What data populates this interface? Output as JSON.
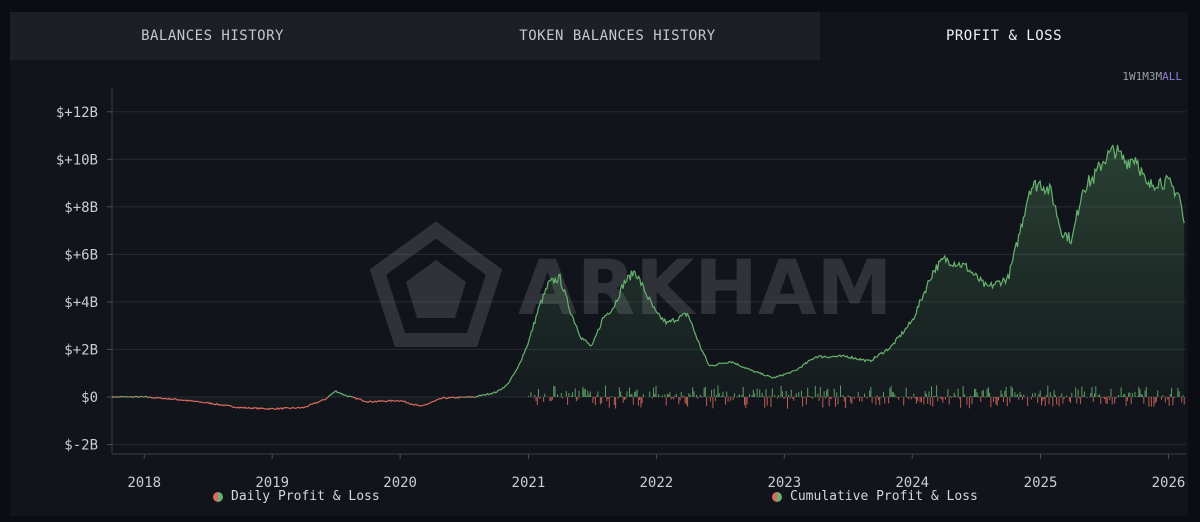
{
  "tabs": [
    {
      "label": "BALANCES HISTORY"
    },
    {
      "label": "TOKEN BALANCES HISTORY"
    },
    {
      "label": "PROFIT & LOSS"
    }
  ],
  "ranges": [
    {
      "label": "1W"
    },
    {
      "label": "1M"
    },
    {
      "label": "3M"
    },
    {
      "label": "ALL"
    }
  ],
  "active_range": "ALL",
  "watermark": "ARKHAM",
  "colors": {
    "positive": "#67b36e",
    "negative": "#d96a5e",
    "accent": "#8e7ad8"
  },
  "chart_data": {
    "type": "area",
    "title": "",
    "xlabel": "",
    "ylabel": "",
    "x_ticks": [
      "2018",
      "2019",
      "2020",
      "2021",
      "2022",
      "2023",
      "2024",
      "2025",
      "2026"
    ],
    "y_ticks": [
      "$-2B",
      "$0",
      "$+2B",
      "$+4B",
      "$+6B",
      "$+8B",
      "$+10B",
      "$+12B"
    ],
    "y_tick_values": [
      -2,
      0,
      2,
      4,
      6,
      8,
      10,
      12
    ],
    "xlim": [
      "2017-10-01",
      "2026-02-20"
    ],
    "ylim": [
      -2.4,
      13.0
    ],
    "unit": "$B",
    "grid": true,
    "legend_position": "bottom",
    "series": [
      {
        "name": "Daily Profit & Loss",
        "kind": "bars",
        "approx_amplitude": 0.5,
        "start": "2021-01-01",
        "end": "2026-02-15"
      },
      {
        "name": "Cumulative Profit & Loss",
        "kind": "area",
        "points": [
          [
            "2017-10-01",
            0.0
          ],
          [
            "2018-01-01",
            0.0
          ],
          [
            "2018-04-01",
            -0.1
          ],
          [
            "2018-07-01",
            -0.25
          ],
          [
            "2018-10-01",
            -0.45
          ],
          [
            "2019-01-01",
            -0.5
          ],
          [
            "2019-04-01",
            -0.45
          ],
          [
            "2019-06-01",
            -0.1
          ],
          [
            "2019-07-01",
            0.25
          ],
          [
            "2019-08-01",
            0.05
          ],
          [
            "2019-10-01",
            -0.2
          ],
          [
            "2020-01-01",
            -0.15
          ],
          [
            "2020-03-01",
            -0.4
          ],
          [
            "2020-05-01",
            -0.05
          ],
          [
            "2020-08-01",
            0.0
          ],
          [
            "2020-10-01",
            0.2
          ],
          [
            "2020-11-01",
            0.5
          ],
          [
            "2020-12-01",
            1.2
          ],
          [
            "2021-01-01",
            2.3
          ],
          [
            "2021-02-01",
            3.8
          ],
          [
            "2021-03-01",
            4.8
          ],
          [
            "2021-04-01",
            5.0
          ],
          [
            "2021-05-01",
            3.6
          ],
          [
            "2021-06-01",
            2.5
          ],
          [
            "2021-07-01",
            2.1
          ],
          [
            "2021-08-01",
            3.3
          ],
          [
            "2021-09-01",
            3.8
          ],
          [
            "2021-10-01",
            4.8
          ],
          [
            "2021-11-01",
            5.3
          ],
          [
            "2021-12-01",
            4.4
          ],
          [
            "2022-01-01",
            3.5
          ],
          [
            "2022-02-01",
            3.1
          ],
          [
            "2022-03-01",
            3.3
          ],
          [
            "2022-04-01",
            3.5
          ],
          [
            "2022-05-01",
            2.3
          ],
          [
            "2022-06-01",
            1.3
          ],
          [
            "2022-08-01",
            1.5
          ],
          [
            "2022-10-01",
            1.1
          ],
          [
            "2022-12-01",
            0.8
          ],
          [
            "2023-02-01",
            1.1
          ],
          [
            "2023-04-01",
            1.7
          ],
          [
            "2023-07-01",
            1.7
          ],
          [
            "2023-09-01",
            1.5
          ],
          [
            "2023-11-01",
            2.1
          ],
          [
            "2024-01-01",
            3.2
          ],
          [
            "2024-03-01",
            5.3
          ],
          [
            "2024-04-01",
            5.8
          ],
          [
            "2024-06-01",
            5.5
          ],
          [
            "2024-08-01",
            4.6
          ],
          [
            "2024-10-01",
            5.0
          ],
          [
            "2024-11-01",
            6.8
          ],
          [
            "2024-12-01",
            8.8
          ],
          [
            "2025-01-01",
            9.0
          ],
          [
            "2025-02-01",
            8.6
          ],
          [
            "2025-03-01",
            7.0
          ],
          [
            "2025-04-01",
            6.6
          ],
          [
            "2025-05-01",
            8.8
          ],
          [
            "2025-06-01",
            9.2
          ],
          [
            "2025-07-01",
            10.0
          ],
          [
            "2025-08-01",
            10.4
          ],
          [
            "2025-09-01",
            9.9
          ],
          [
            "2025-10-01",
            10.1
          ],
          [
            "2025-11-01",
            8.8
          ],
          [
            "2025-12-01",
            9.1
          ],
          [
            "2026-01-01",
            9.0
          ],
          [
            "2026-02-01",
            8.5
          ],
          [
            "2026-02-15",
            7.2
          ]
        ]
      }
    ]
  }
}
